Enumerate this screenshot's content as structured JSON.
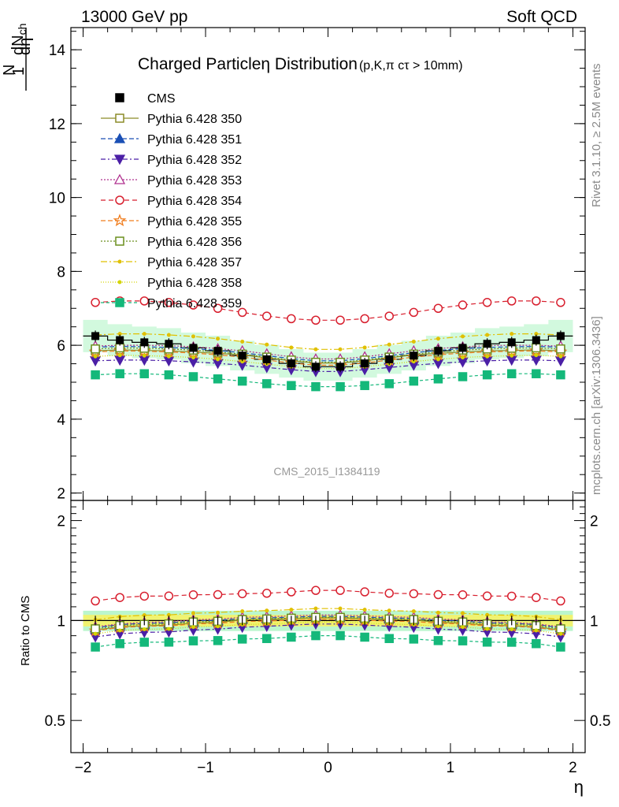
{
  "header": {
    "left": "13000 GeV pp",
    "right": "Soft QCD"
  },
  "side_labels": {
    "rivet": "Rivet 3.1.10, ≥ 2.5M events",
    "mcplots": "mcplots.cern.ch [arXiv:1306.3436]"
  },
  "chart_data": {
    "type": "line",
    "title": "Charged Particleη Distribution",
    "subtitle": "(p,K,π cτ > 10mm)",
    "watermark": "CMS_2015_I1384119",
    "xlabel": "η",
    "ylabel_top": "1dN_ch / N dη",
    "ylabel_bottom": "Ratio to CMS",
    "xlim": [
      -2.1,
      2.1
    ],
    "ylim_top": [
      1.8,
      14.6
    ],
    "ylim_bottom": [
      0.4,
      2.3
    ],
    "ylog_bottom": true,
    "x_ticks": [
      "−2",
      "−1",
      "0",
      "1",
      "2"
    ],
    "y_ticks_top": [
      "2",
      "4",
      "6",
      "8",
      "10",
      "12",
      "14"
    ],
    "y_ticks_bottom": [
      "0.5",
      "1",
      "2"
    ],
    "x": [
      -1.9,
      -1.7,
      -1.5,
      -1.3,
      -1.1,
      -0.9,
      -0.7,
      -0.5,
      -0.3,
      -0.1,
      0.1,
      0.3,
      0.5,
      0.7,
      0.9,
      1.1,
      1.3,
      1.5,
      1.7,
      1.9
    ],
    "data": {
      "name": "CMS",
      "values": [
        6.25,
        6.14,
        6.08,
        6.04,
        5.93,
        5.85,
        5.72,
        5.62,
        5.51,
        5.42,
        5.42,
        5.51,
        5.62,
        5.72,
        5.85,
        5.93,
        6.04,
        6.08,
        6.14,
        6.25
      ],
      "band_inner": 0.04,
      "band_outer": 0.07
    },
    "legend_position": "top-left",
    "series": [
      {
        "name": "Pythia 6.428 350",
        "color": "#8c8c28",
        "dash": "",
        "marker": "square-open",
        "values": [
          5.85,
          5.88,
          5.86,
          5.85,
          5.82,
          5.78,
          5.74,
          5.66,
          5.58,
          5.52,
          5.52,
          5.58,
          5.66,
          5.74,
          5.78,
          5.82,
          5.85,
          5.86,
          5.88,
          5.85
        ]
      },
      {
        "name": "Pythia 6.428 351",
        "color": "#1a4fb5",
        "dash": "6,3",
        "marker": "triangle-up",
        "values": [
          5.95,
          5.97,
          5.96,
          5.94,
          5.91,
          5.86,
          5.8,
          5.72,
          5.64,
          5.58,
          5.58,
          5.64,
          5.72,
          5.8,
          5.86,
          5.91,
          5.94,
          5.96,
          5.97,
          5.95
        ]
      },
      {
        "name": "Pythia 6.428 352",
        "color": "#4b1fa6",
        "dash": "6,3,2,3",
        "marker": "triangle-down",
        "values": [
          5.58,
          5.6,
          5.6,
          5.58,
          5.55,
          5.51,
          5.46,
          5.4,
          5.34,
          5.29,
          5.29,
          5.34,
          5.4,
          5.46,
          5.51,
          5.55,
          5.58,
          5.6,
          5.6,
          5.58
        ]
      },
      {
        "name": "Pythia 6.428 353",
        "color": "#b0308f",
        "dash": "2,2",
        "marker": "triangle-open",
        "values": [
          5.98,
          6.0,
          6.0,
          5.99,
          5.96,
          5.91,
          5.85,
          5.77,
          5.69,
          5.63,
          5.63,
          5.69,
          5.77,
          5.85,
          5.91,
          5.96,
          5.99,
          6.0,
          6.0,
          5.98
        ]
      },
      {
        "name": "Pythia 6.428 354",
        "color": "#d81f2e",
        "dash": "6,4",
        "marker": "circle-open",
        "values": [
          7.16,
          7.2,
          7.2,
          7.16,
          7.09,
          7.0,
          6.89,
          6.79,
          6.72,
          6.68,
          6.68,
          6.72,
          6.79,
          6.89,
          7.0,
          7.09,
          7.16,
          7.2,
          7.2,
          7.16
        ]
      },
      {
        "name": "Pythia 6.428 355",
        "color": "#f07d1e",
        "dash": "6,3",
        "marker": "star-open",
        "values": [
          5.82,
          5.85,
          5.84,
          5.82,
          5.79,
          5.74,
          5.68,
          5.6,
          5.52,
          5.46,
          5.46,
          5.52,
          5.6,
          5.68,
          5.74,
          5.79,
          5.82,
          5.84,
          5.85,
          5.82
        ]
      },
      {
        "name": "Pythia 6.428 356",
        "color": "#6b8f1e",
        "dash": "2,2",
        "marker": "square-open",
        "values": [
          5.9,
          5.93,
          5.92,
          5.9,
          5.87,
          5.82,
          5.76,
          5.68,
          5.6,
          5.54,
          5.54,
          5.6,
          5.68,
          5.76,
          5.82,
          5.87,
          5.9,
          5.92,
          5.93,
          5.9
        ]
      },
      {
        "name": "Pythia 6.428 357",
        "color": "#e0c000",
        "dash": "8,3,2,3",
        "marker": "dot",
        "values": [
          6.28,
          6.31,
          6.31,
          6.28,
          6.24,
          6.18,
          6.1,
          6.02,
          5.94,
          5.89,
          5.89,
          5.94,
          6.02,
          6.1,
          6.18,
          6.24,
          6.28,
          6.31,
          6.31,
          6.28
        ]
      },
      {
        "name": "Pythia 6.428 358",
        "color": "#d4d400",
        "dash": "1,2",
        "marker": "dot",
        "values": [
          5.7,
          5.73,
          5.72,
          5.7,
          5.67,
          5.62,
          5.56,
          5.49,
          5.42,
          5.37,
          5.37,
          5.42,
          5.49,
          5.56,
          5.62,
          5.67,
          5.7,
          5.72,
          5.73,
          5.7
        ]
      },
      {
        "name": "Pythia 6.428 359",
        "color": "#14b87a",
        "dash": "4,3",
        "marker": "square",
        "values": [
          5.2,
          5.23,
          5.23,
          5.2,
          5.15,
          5.09,
          5.03,
          4.96,
          4.91,
          4.88,
          4.88,
          4.91,
          4.96,
          5.03,
          5.09,
          5.15,
          5.2,
          5.23,
          5.23,
          5.2
        ]
      }
    ]
  }
}
